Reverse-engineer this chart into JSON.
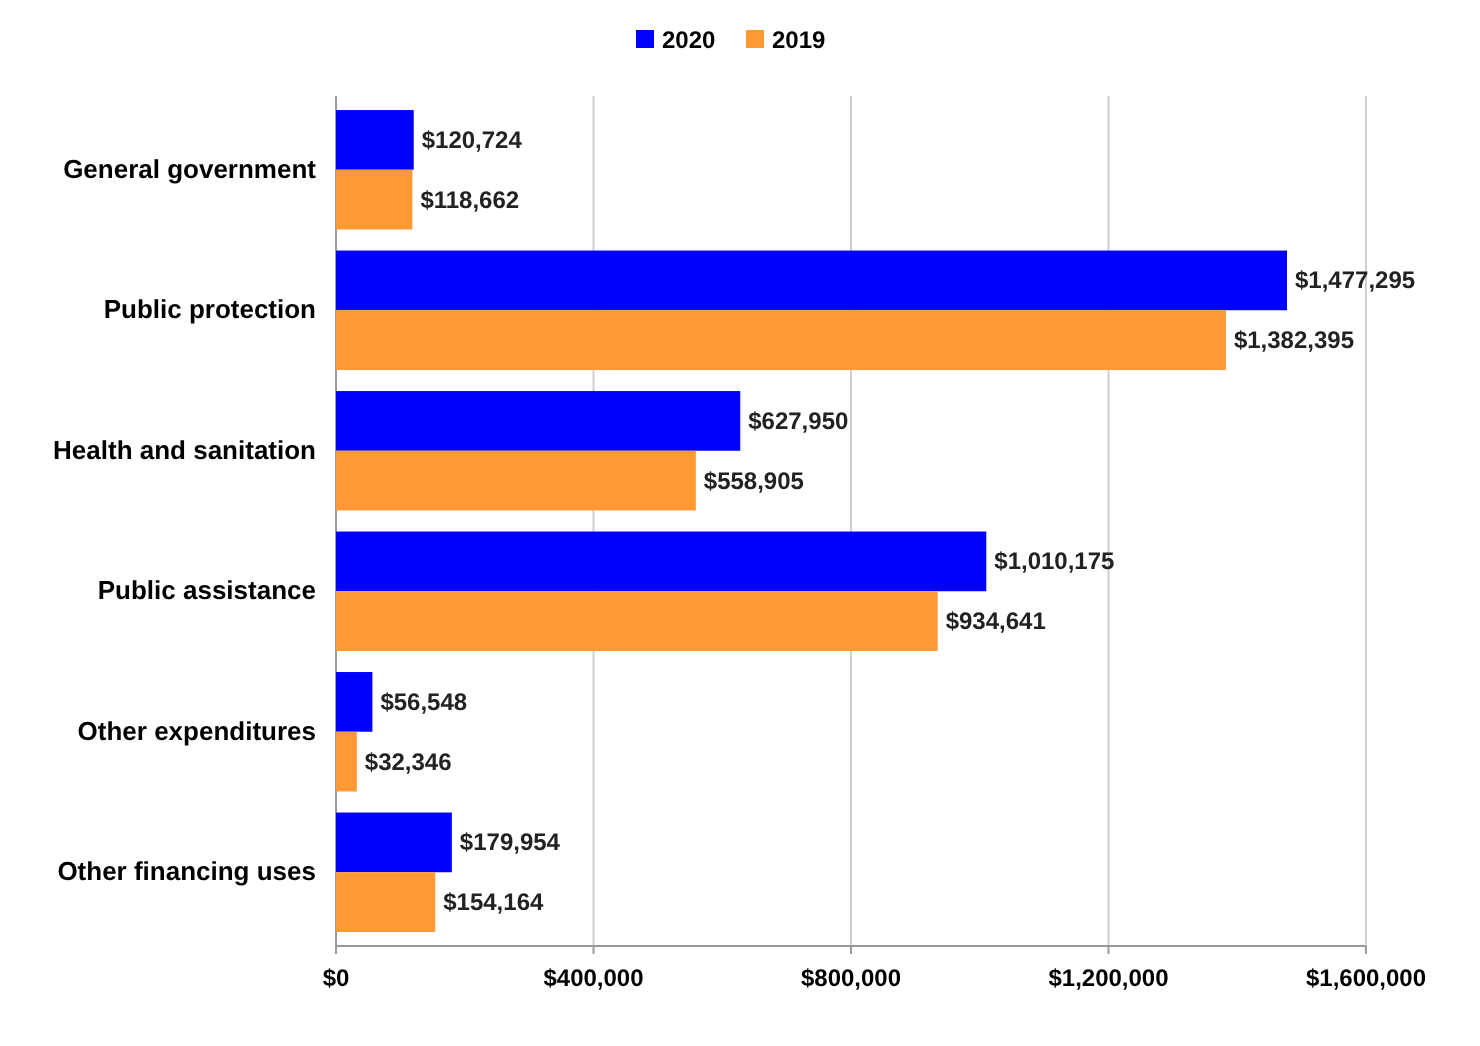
{
  "chart_data": {
    "type": "bar",
    "orientation": "horizontal",
    "categories": [
      "General government",
      "Public protection",
      "Health and sanitation",
      "Public assistance",
      "Other expenditures",
      "Other financing uses"
    ],
    "series": [
      {
        "name": "2020",
        "color": "#0000ff",
        "values": [
          120724,
          1477295,
          627950,
          1010175,
          56548,
          179954
        ],
        "value_labels": [
          "$120,724",
          "$1,477,295",
          "$627,950",
          "$1,010,175",
          "$56,548",
          "$179,954"
        ]
      },
      {
        "name": "2019",
        "color": "#ff9933",
        "values": [
          118662,
          1382395,
          558905,
          934641,
          32346,
          154164
        ],
        "value_labels": [
          "$118,662",
          "$1,382,395",
          "$558,905",
          "$934,641",
          "$32,346",
          "$154,164"
        ]
      }
    ],
    "xlim": [
      0,
      1600000
    ],
    "xticks": [
      {
        "value": 0,
        "label": "$0"
      },
      {
        "value": 400000,
        "label": "$400,000"
      },
      {
        "value": 800000,
        "label": "$800,000"
      },
      {
        "value": 1200000,
        "label": "$1,200,000"
      },
      {
        "value": 1600000,
        "label": "$1,600,000"
      }
    ],
    "grid": "x",
    "legend": "top"
  }
}
